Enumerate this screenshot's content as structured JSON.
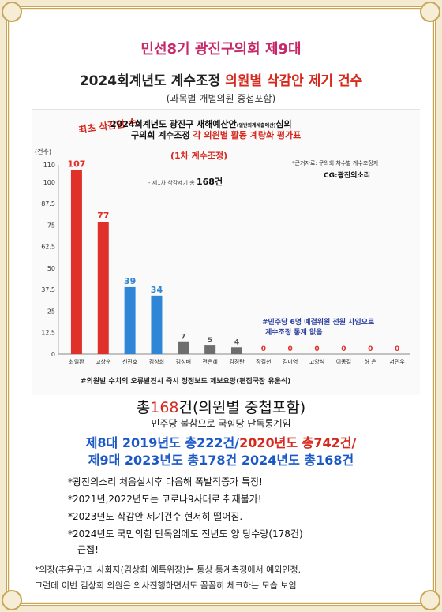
{
  "header": {
    "title1": "민선8기 광진구의회 제9대",
    "title2_black": "2024회계년도 계수조정 ",
    "title2_red": "의원별 삭감안 제기 건수",
    "title3": "(과목별 개별의원 중첩포함)"
  },
  "chart_data": {
    "type": "bar",
    "title_line1": "2024회계년도 광진구 새해예산안",
    "title_small": "(일반회계세출예산)",
    "title_tail": "심의",
    "title_line2a": "구의회 계수조정 ",
    "title_line2b": "각 의원별 활동 계량화 평가표",
    "title_line3": "(1차 계수조정)",
    "stamp": "최초 삭감안 수",
    "source": "*근거자료: 구의회 차수별 계수조정지",
    "credit": "CG:광진의소리",
    "total_note_prefix": "- 제1차 삭감제기 총",
    "total_note_value": "168건",
    "minju_note_1": "#민주당 6명 예결위원 전원 사임으로",
    "minju_note_2": "계수조정 통계 없음",
    "bottom_caption": "#의원발 수치의 오류발견시 즉시 정정보도 제보요망(편집국장 유윤석)",
    "ylabel": "(건수)",
    "yticks": [
      "110",
      "100",
      "87.5",
      "75",
      "62.5",
      "50",
      "37.5",
      "25",
      "12.5",
      "0"
    ],
    "ytick_values": [
      110,
      100,
      87.5,
      75,
      62.5,
      50,
      37.5,
      25,
      12.5,
      0
    ],
    "ylim": [
      0,
      110
    ],
    "categories": [
      "최일환",
      "고상순",
      "신진호",
      "김상희",
      "김성배",
      "전은혜",
      "김경란",
      "장길천",
      "김미영",
      "고양석",
      "이동길",
      "허 은",
      "서민우"
    ],
    "values": [
      107,
      77,
      39,
      34,
      7,
      5,
      4,
      0,
      0,
      0,
      0,
      0,
      0
    ],
    "colors": [
      "#e0302a",
      "#e0302a",
      "#2f86d6",
      "#2f86d6",
      "#6e6e6e",
      "#6e6e6e",
      "#6e6e6e",
      "#9a9a9a",
      "#9a9a9a",
      "#9a9a9a",
      "#9a9a9a",
      "#9a9a9a",
      "#9a9a9a"
    ],
    "label_colors": [
      "#e0302a",
      "#e0302a",
      "#2f86d6",
      "#2f86d6",
      "#555555",
      "#555555",
      "#555555",
      "#e0302a",
      "#e0302a",
      "#e0302a",
      "#e0302a",
      "#e0302a",
      "#e0302a"
    ],
    "grid": false
  },
  "summary": {
    "total_prefix": "총",
    "total_value": "168",
    "total_suffix": "건(의원별 중첩포함)",
    "subline": "민주당 불참으로 국힘당 단독통계임",
    "line1_blue": "제8대 2019년도 총222건/",
    "line1_red": "2020년도 총742건/",
    "line2": "제9대 2023년도 총178건  2024년도 총168건"
  },
  "notes": [
    "*광진의소리 처음실시후 다음해 폭발적증가 특징!",
    "*2021년,2022년도는 코로나9사태로 취재불가!",
    "*2023년도 삭감안 제기건수 현저히 떨어짐.",
    "*2024년도 국민의힘 단독임에도 전년도 양 당수량(178건)",
    "근접!"
  ],
  "footer": [
    "*의장(추윤구)과 사회자(김상희 예특위장)는 통상 통계측정에서 예외인정.",
    "그런데 이번 김상희 의원은 의사진행하면서도 꼼꼼히 체크하는 모습 보임"
  ]
}
